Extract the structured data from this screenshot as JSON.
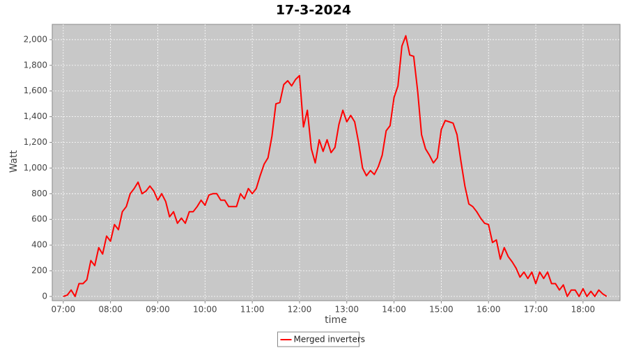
{
  "chart_data": {
    "type": "line",
    "title": "17-3-2024",
    "x_label": "time",
    "y_label": "Watt",
    "x": [
      "07:00",
      "07:05",
      "07:10",
      "07:15",
      "07:20",
      "07:25",
      "07:30",
      "07:35",
      "07:40",
      "07:45",
      "07:50",
      "07:55",
      "08:00",
      "08:05",
      "08:10",
      "08:15",
      "08:20",
      "08:25",
      "08:30",
      "08:35",
      "08:40",
      "08:45",
      "08:50",
      "08:55",
      "09:00",
      "09:05",
      "09:10",
      "09:15",
      "09:20",
      "09:25",
      "09:30",
      "09:35",
      "09:40",
      "09:45",
      "09:50",
      "09:55",
      "10:00",
      "10:05",
      "10:10",
      "10:15",
      "10:20",
      "10:25",
      "10:30",
      "10:35",
      "10:40",
      "10:45",
      "10:50",
      "10:55",
      "11:00",
      "11:05",
      "11:10",
      "11:15",
      "11:20",
      "11:25",
      "11:30",
      "11:35",
      "11:40",
      "11:45",
      "11:50",
      "11:55",
      "12:00",
      "12:05",
      "12:10",
      "12:15",
      "12:20",
      "12:25",
      "12:30",
      "12:35",
      "12:40",
      "12:45",
      "12:50",
      "12:55",
      "13:00",
      "13:05",
      "13:10",
      "13:15",
      "13:20",
      "13:25",
      "13:30",
      "13:35",
      "13:40",
      "13:45",
      "13:50",
      "13:55",
      "14:00",
      "14:05",
      "14:10",
      "14:15",
      "14:20",
      "14:25",
      "14:30",
      "14:35",
      "14:40",
      "14:45",
      "14:50",
      "14:55",
      "15:00",
      "15:05",
      "15:10",
      "15:15",
      "15:20",
      "15:25",
      "15:30",
      "15:35",
      "15:40",
      "15:45",
      "15:50",
      "15:55",
      "16:00",
      "16:05",
      "16:10",
      "16:15",
      "16:20",
      "16:25",
      "16:30",
      "16:35",
      "16:40",
      "16:45",
      "16:50",
      "16:55",
      "17:00",
      "17:05",
      "17:10",
      "17:15",
      "17:20",
      "17:25",
      "17:30",
      "17:35",
      "17:40",
      "17:45",
      "17:50",
      "17:55",
      "18:00",
      "18:05",
      "18:10",
      "18:15",
      "18:20",
      "18:25",
      "18:30"
    ],
    "series": [
      {
        "name": "Merged inverters",
        "color": "#ff0000",
        "values": [
          0,
          10,
          50,
          0,
          100,
          100,
          130,
          280,
          240,
          380,
          330,
          470,
          430,
          560,
          520,
          660,
          700,
          800,
          840,
          890,
          800,
          820,
          860,
          820,
          750,
          800,
          740,
          620,
          660,
          570,
          610,
          570,
          660,
          660,
          700,
          750,
          710,
          790,
          800,
          800,
          750,
          750,
          700,
          700,
          700,
          800,
          760,
          840,
          800,
          840,
          940,
          1030,
          1080,
          1250,
          1500,
          1510,
          1650,
          1680,
          1640,
          1690,
          1720,
          1320,
          1450,
          1150,
          1040,
          1220,
          1130,
          1220,
          1120,
          1160,
          1340,
          1450,
          1360,
          1410,
          1360,
          1200,
          1000,
          940,
          980,
          950,
          1010,
          1100,
          1290,
          1330,
          1550,
          1640,
          1950,
          2030,
          1880,
          1870,
          1600,
          1260,
          1150,
          1100,
          1040,
          1080,
          1300,
          1370,
          1360,
          1350,
          1260,
          1050,
          860,
          720,
          700,
          660,
          610,
          570,
          560,
          420,
          440,
          290,
          380,
          310,
          270,
          220,
          150,
          190,
          140,
          190,
          100,
          190,
          140,
          190,
          100,
          100,
          50,
          90,
          0,
          50,
          50,
          0,
          60,
          0,
          40,
          0,
          50,
          20,
          0
        ]
      }
    ],
    "xlim": [
      "06:46",
      "18:47"
    ],
    "xticks": [
      "07:00",
      "08:00",
      "09:00",
      "10:00",
      "11:00",
      "12:00",
      "13:00",
      "14:00",
      "15:00",
      "16:00",
      "17:00",
      "18:00"
    ],
    "ylim": [
      -33,
      2119
    ],
    "yticks": [
      0,
      200,
      400,
      600,
      800,
      {
        "value": 1000,
        "label": "1,000"
      },
      {
        "value": 1200,
        "label": "1,200"
      },
      {
        "value": 1400,
        "label": "1,400"
      },
      {
        "value": 1600,
        "label": "1,600"
      },
      {
        "value": 1800,
        "label": "1,800"
      },
      {
        "value": 2000,
        "label": "2,000"
      }
    ],
    "grid": true,
    "legend": "bottom",
    "plot_background": "#c8c8c8"
  }
}
